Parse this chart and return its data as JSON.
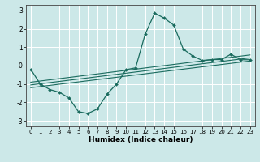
{
  "title": "",
  "xlabel": "Humidex (Indice chaleur)",
  "bg_color": "#cce8e8",
  "grid_color": "#ffffff",
  "line_color": "#1a6b5e",
  "xlim": [
    -0.5,
    23.5
  ],
  "ylim": [
    -3.3,
    3.3
  ],
  "xticks": [
    0,
    1,
    2,
    3,
    4,
    5,
    6,
    7,
    8,
    9,
    10,
    11,
    12,
    13,
    14,
    15,
    16,
    17,
    18,
    19,
    20,
    21,
    22,
    23
  ],
  "yticks": [
    -3,
    -2,
    -1,
    0,
    1,
    2,
    3
  ],
  "curve_x": [
    0,
    1,
    2,
    3,
    4,
    5,
    6,
    7,
    8,
    9,
    10,
    11,
    12,
    13,
    14,
    15,
    16,
    17,
    18,
    19,
    20,
    21,
    22,
    23
  ],
  "curve_y": [
    -0.2,
    -1.0,
    -1.3,
    -1.45,
    -1.75,
    -2.5,
    -2.6,
    -2.35,
    -1.55,
    -1.0,
    -0.22,
    -0.12,
    1.7,
    2.85,
    2.58,
    2.2,
    0.9,
    0.52,
    0.28,
    0.33,
    0.33,
    0.62,
    0.32,
    0.32
  ],
  "line1_x": [
    0,
    23
  ],
  "line1_y": [
    -1.05,
    0.42
  ],
  "line2_x": [
    0,
    23
  ],
  "line2_y": [
    -1.2,
    0.25
  ],
  "line3_x": [
    0,
    23
  ],
  "line3_y": [
    -0.9,
    0.58
  ]
}
